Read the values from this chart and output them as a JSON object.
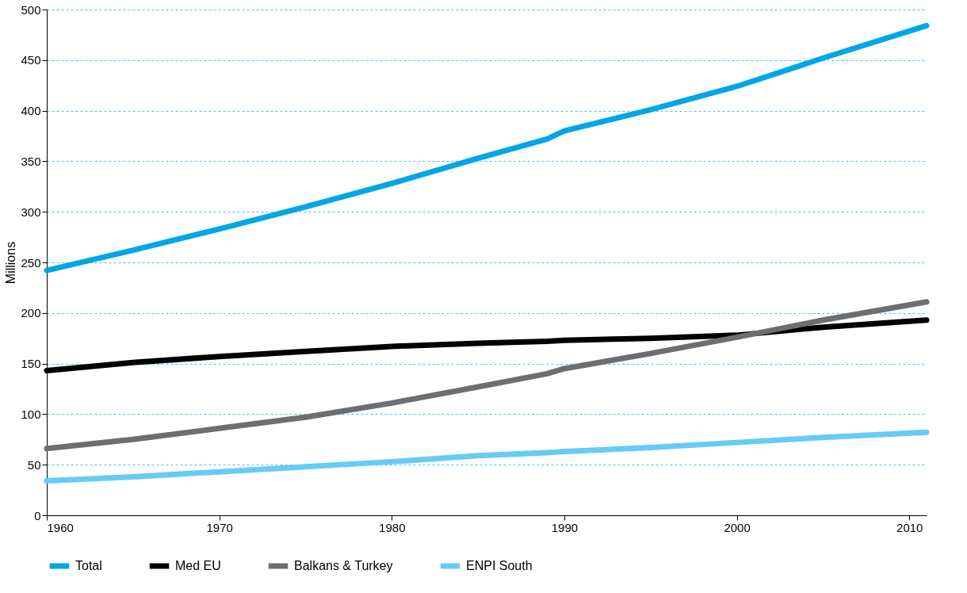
{
  "chart_data": {
    "type": "line",
    "ylabel": "Millions",
    "xlim": [
      1960,
      2011
    ],
    "xticks": [
      1960,
      1970,
      1980,
      1990,
      2000,
      2010
    ],
    "ylim": [
      0,
      500
    ],
    "yticks": [
      0,
      50,
      100,
      150,
      200,
      250,
      300,
      350,
      400,
      450,
      500
    ],
    "grid": "y",
    "legend": "bottom",
    "line_style": "solid",
    "x": [
      1960,
      1965,
      1970,
      1975,
      1980,
      1985,
      1989,
      1990,
      1995,
      2000,
      2005,
      2011
    ],
    "series": [
      {
        "name": "Total",
        "color": "#00a6e6",
        "values": [
          242,
          262,
          283,
          305,
          328,
          353,
          372,
          380,
          401,
          424,
          452,
          484
        ]
      },
      {
        "name": "Med EU",
        "color": "#000000",
        "values": [
          143,
          151,
          157,
          162,
          167,
          170,
          172,
          173,
          175,
          178,
          186,
          193
        ]
      },
      {
        "name": "Balkans & Turkey",
        "color": "#6d6e71",
        "values": [
          66,
          75,
          86,
          97,
          111,
          127,
          140,
          145,
          160,
          176,
          193,
          211
        ]
      },
      {
        "name": "ENPI South",
        "color": "#66ccf5",
        "values": [
          34,
          38,
          43,
          48,
          53,
          59,
          62,
          63,
          67,
          72,
          77,
          82
        ]
      }
    ]
  }
}
